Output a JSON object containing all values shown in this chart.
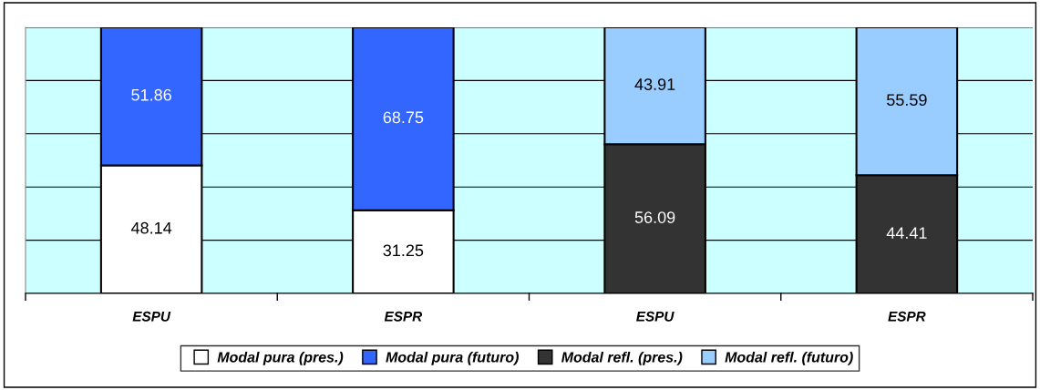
{
  "chart_data": {
    "type": "bar",
    "stacked": true,
    "categories": [
      "ESPU",
      "ESPR",
      "ESPU",
      "ESPR"
    ],
    "series": [
      {
        "name": "Modal pura (pres.)",
        "color": "#ffffff",
        "values": [
          48.14,
          31.25,
          null,
          null
        ]
      },
      {
        "name": "Modal pura (futuro)",
        "color": "#3366ff",
        "values": [
          51.86,
          68.75,
          null,
          null
        ]
      },
      {
        "name": "Modal refl. (pres.)",
        "color": "#333333",
        "values": [
          null,
          null,
          56.09,
          44.41
        ]
      },
      {
        "name": "Modal refl. (futuro)",
        "color": "#99ccff",
        "values": [
          null,
          null,
          43.91,
          55.59
        ]
      }
    ],
    "ylim": [
      0,
      100
    ],
    "yticks": [
      {
        "value": 0,
        "label": null
      },
      {
        "value": 20,
        "label": null
      },
      {
        "value": 40,
        "label": null
      },
      {
        "value": 60,
        "label": null
      },
      {
        "value": 80,
        "label": null
      },
      {
        "value": 100,
        "label": null
      }
    ],
    "tick_labels": "x",
    "grid": "y",
    "legend": "bottom",
    "data_labels": true
  }
}
